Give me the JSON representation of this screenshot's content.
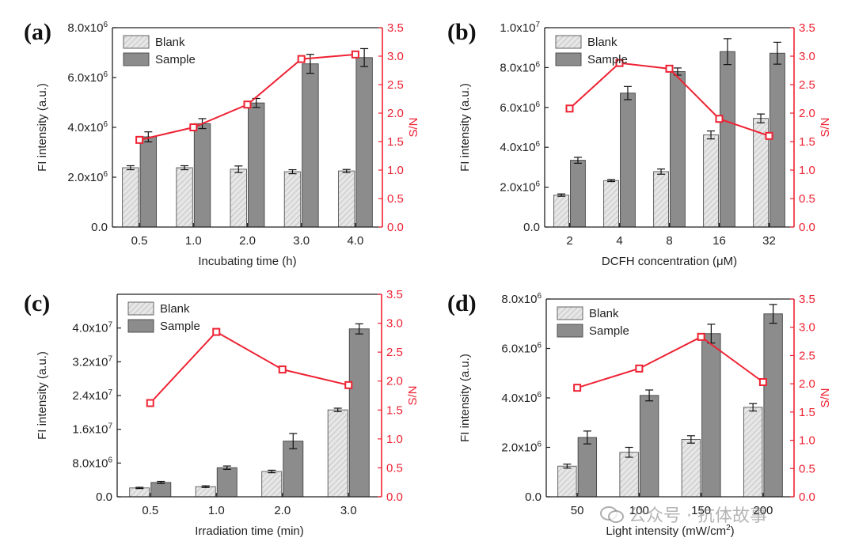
{
  "colors": {
    "blank": "#e6e6e6",
    "sample": "#8c8c8c",
    "sn": "#ee2233",
    "axis": "#222222"
  },
  "watermark": {
    "text": "公众号 · 抗体故事",
    "icon": "wechat-icon"
  },
  "chart_data": [
    {
      "panel": "(a)",
      "type": "bar",
      "xlabel": "Incubating time (h)",
      "ylabel": "FI intensity (a.u.)",
      "y2label": "S/N",
      "categories": [
        "0.5",
        "1.0",
        "2.0",
        "3.0",
        "4.0"
      ],
      "ylim": [
        0,
        8000000
      ],
      "y_ticks": [
        0,
        2000000,
        4000000,
        6000000,
        8000000
      ],
      "y_tick_labels": [
        "0.0",
        "2.0x10^6",
        "4.0x10^6",
        "6.0x10^6",
        "8.0x10^6"
      ],
      "y2lim": [
        0,
        3.5
      ],
      "y2_ticks": [
        "0.0",
        "0.5",
        "1.0",
        "1.5",
        "2.0",
        "2.5",
        "3.0",
        "3.5"
      ],
      "series": [
        {
          "name": "Blank",
          "values": [
            2380000,
            2380000,
            2320000,
            2220000,
            2250000
          ],
          "errors": [
            80000,
            80000,
            130000,
            80000,
            60000
          ]
        },
        {
          "name": "Sample",
          "values": [
            3620000,
            4150000,
            4980000,
            6550000,
            6800000
          ],
          "errors": [
            200000,
            200000,
            180000,
            380000,
            360000
          ]
        },
        {
          "name": "S/N",
          "values": [
            1.53,
            1.75,
            2.15,
            2.95,
            3.03
          ]
        }
      ],
      "legend_position": "top-left"
    },
    {
      "panel": "(b)",
      "type": "bar",
      "xlabel": "DCFH concentration (μM)",
      "ylabel": "FI intensity (a.u.)",
      "y2label": "S/N",
      "categories": [
        "2",
        "4",
        "8",
        "16",
        "32"
      ],
      "ylim": [
        0,
        10000000
      ],
      "y_ticks": [
        0,
        2000000,
        4000000,
        6000000,
        8000000,
        10000000
      ],
      "y_tick_labels": [
        "0.0",
        "2.0x10^6",
        "4.0x10^6",
        "6.0x10^6",
        "8.0x10^6",
        "1.0x10^7"
      ],
      "y2lim": [
        0,
        3.5
      ],
      "y2_ticks": [
        "0.0",
        "0.5",
        "1.0",
        "1.5",
        "2.0",
        "2.5",
        "3.0",
        "3.5"
      ],
      "series": [
        {
          "name": "Blank",
          "values": [
            1600000,
            2330000,
            2780000,
            4620000,
            5450000
          ],
          "errors": [
            60000,
            50000,
            130000,
            200000,
            220000
          ]
        },
        {
          "name": "Sample",
          "values": [
            3350000,
            6720000,
            7800000,
            8800000,
            8720000
          ],
          "errors": [
            150000,
            330000,
            180000,
            650000,
            550000
          ]
        },
        {
          "name": "S/N",
          "values": [
            2.08,
            2.88,
            2.78,
            1.9,
            1.6
          ]
        }
      ],
      "legend_position": "top-left"
    },
    {
      "panel": "(c)",
      "type": "bar",
      "xlabel": "Irradiation time (min)",
      "ylabel": "FI intensity (a.u.)",
      "y2label": "S/N",
      "categories": [
        "0.5",
        "1.0",
        "2.0",
        "3.0"
      ],
      "ylim": [
        0,
        48000000
      ],
      "y_ticks": [
        0,
        8000000,
        16000000,
        24000000,
        32000000,
        40000000
      ],
      "y_tick_labels": [
        "0.0",
        "8.0x10^6",
        "1.6x10^7",
        "2.4x10^7",
        "3.2x10^7",
        "4.0x10^7"
      ],
      "y2lim": [
        0,
        3.5
      ],
      "y2_ticks": [
        "0.0",
        "0.5",
        "1.0",
        "1.5",
        "2.0",
        "2.5",
        "3.0",
        "3.5"
      ],
      "series": [
        {
          "name": "Blank",
          "values": [
            2100000,
            2400000,
            6000000,
            20600000
          ],
          "errors": [
            150000,
            200000,
            300000,
            400000
          ]
        },
        {
          "name": "Sample",
          "values": [
            3400000,
            6900000,
            13200000,
            39800000
          ],
          "errors": [
            250000,
            400000,
            1800000,
            1200000
          ]
        },
        {
          "name": "S/N",
          "values": [
            1.62,
            2.85,
            2.2,
            1.93
          ]
        }
      ],
      "legend_position": "top-left"
    },
    {
      "panel": "(d)",
      "type": "bar",
      "xlabel": "Light intensity (mW/cm^2)",
      "ylabel": "FI intensity (a.u.)",
      "y2label": "S/N",
      "categories": [
        "50",
        "100",
        "150",
        "200"
      ],
      "ylim": [
        0,
        8000000
      ],
      "y_ticks": [
        0,
        2000000,
        4000000,
        6000000,
        8000000
      ],
      "y_tick_labels": [
        "0.0",
        "2.0x10^6",
        "4.0x10^6",
        "6.0x10^6",
        "8.0x10^6"
      ],
      "y2lim": [
        0,
        3.5
      ],
      "y2_ticks": [
        "0.0",
        "0.5",
        "1.0",
        "1.5",
        "2.0",
        "2.5",
        "3.0",
        "3.5"
      ],
      "series": [
        {
          "name": "Blank",
          "values": [
            1240000,
            1800000,
            2320000,
            3620000
          ],
          "errors": [
            80000,
            200000,
            150000,
            150000
          ]
        },
        {
          "name": "Sample",
          "values": [
            2400000,
            4100000,
            6600000,
            7400000
          ],
          "errors": [
            260000,
            220000,
            380000,
            380000
          ]
        },
        {
          "name": "S/N",
          "values": [
            1.93,
            2.27,
            2.83,
            2.03
          ]
        }
      ],
      "legend_position": "top-left"
    }
  ]
}
